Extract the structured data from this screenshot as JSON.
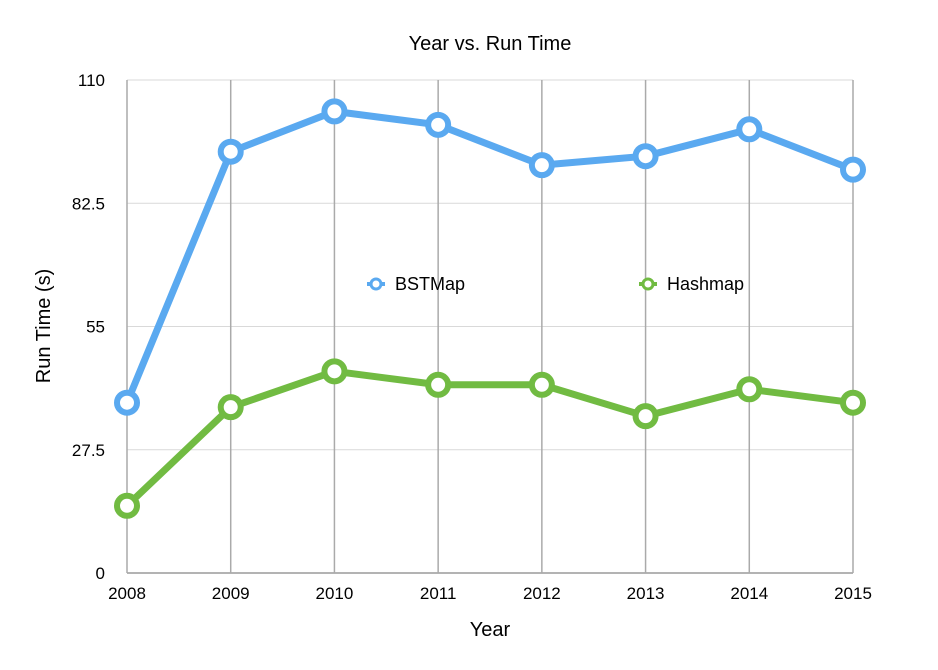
{
  "chart_data": {
    "type": "line",
    "title": "Year vs. Run Time",
    "xlabel": "Year",
    "ylabel": "Run Time (s)",
    "categories": [
      "2008",
      "2009",
      "2010",
      "2011",
      "2012",
      "2013",
      "2014",
      "2015"
    ],
    "ylim": [
      0,
      110
    ],
    "yticks": [
      "0",
      "27.5",
      "55",
      "82.5",
      "110"
    ],
    "grid": "vertical",
    "legend": "inside-center",
    "series": [
      {
        "name": "BSTMap",
        "color": "#5aa9f0",
        "values": [
          38,
          94,
          103,
          100,
          91,
          93,
          99,
          90
        ]
      },
      {
        "name": "Hashmap",
        "color": "#71bb42",
        "values": [
          15,
          37,
          45,
          42,
          42,
          35,
          41,
          38
        ]
      }
    ]
  }
}
